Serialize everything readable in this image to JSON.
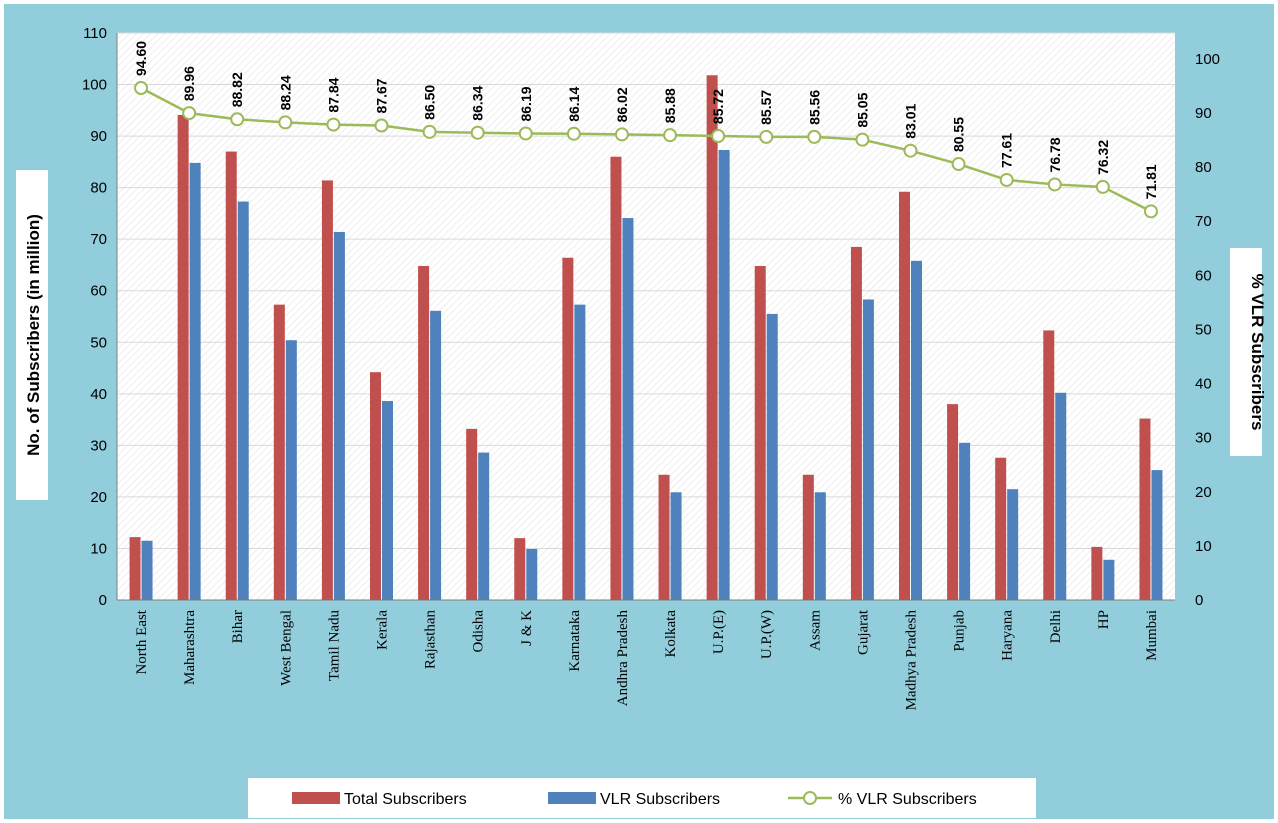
{
  "chart_data": {
    "type": "bar",
    "categories": [
      "North East",
      "Maharashtra",
      "Bihar",
      "West Bengal",
      "Tamil Nadu",
      "Kerala",
      "Rajasthan",
      "Odisha",
      "J & K",
      "Karnataka",
      "Andhra Pradesh",
      "Kolkata",
      "U.P.(E)",
      "U.P.(W)",
      "Assam",
      "Gujarat",
      "Madhya Pradesh",
      "Punjab",
      "Haryana",
      "Delhi",
      "HP",
      "Mumbai"
    ],
    "series": [
      {
        "name": "Total Subscribers",
        "kind": "bar",
        "axis": "left",
        "color": "#c0504d",
        "values": [
          12.2,
          94.1,
          87.0,
          57.3,
          81.4,
          44.2,
          64.8,
          33.2,
          12.0,
          66.4,
          86.0,
          24.3,
          101.8,
          64.8,
          24.3,
          68.5,
          79.2,
          38.0,
          27.6,
          52.3,
          10.3,
          35.2
        ]
      },
      {
        "name": "VLR Subscribers",
        "kind": "bar",
        "axis": "left",
        "color": "#4f81bd",
        "values": [
          11.5,
          84.8,
          77.3,
          50.4,
          71.4,
          38.6,
          56.1,
          28.6,
          9.9,
          57.3,
          74.1,
          20.9,
          87.3,
          55.5,
          20.9,
          58.3,
          65.8,
          30.5,
          21.5,
          40.2,
          7.8,
          25.2
        ]
      },
      {
        "name": "% VLR Subscribers",
        "kind": "line",
        "axis": "right",
        "color": "#9bbb59",
        "values": [
          94.6,
          89.96,
          88.82,
          88.24,
          87.84,
          87.67,
          86.5,
          86.34,
          86.19,
          86.14,
          86.02,
          85.88,
          85.72,
          85.57,
          85.56,
          85.05,
          83.01,
          80.55,
          77.61,
          76.78,
          76.32,
          71.81
        ],
        "labels": [
          "94.60",
          "89.96",
          "88.82",
          "88.24",
          "87.84",
          "87.67",
          "86.50",
          "86.34",
          "86.19",
          "86.14",
          "86.02",
          "85.88",
          "85.72",
          "85.57",
          "85.56",
          "85.05",
          "83.01",
          "80.55",
          "77.61",
          "76.78",
          "76.32",
          "71.81"
        ]
      }
    ],
    "ylabel": "No. of Subscribers (in million)",
    "y2label": "% VLR Subscribers",
    "ylim": [
      0,
      110
    ],
    "yticks": [
      "0",
      "10",
      "20",
      "30",
      "40",
      "50",
      "60",
      "70",
      "80",
      "90",
      "100",
      "110"
    ],
    "y2lim": [
      0,
      104.76
    ],
    "y2ticks": [
      "0",
      "10",
      "20",
      "30",
      "40",
      "50",
      "60",
      "70",
      "80",
      "90",
      "100"
    ],
    "legend_position": "bottom",
    "grid": true,
    "colors": {
      "frame": "#92cddc",
      "plot_background": "#ffffff",
      "grid": "#d9d9d9"
    }
  }
}
